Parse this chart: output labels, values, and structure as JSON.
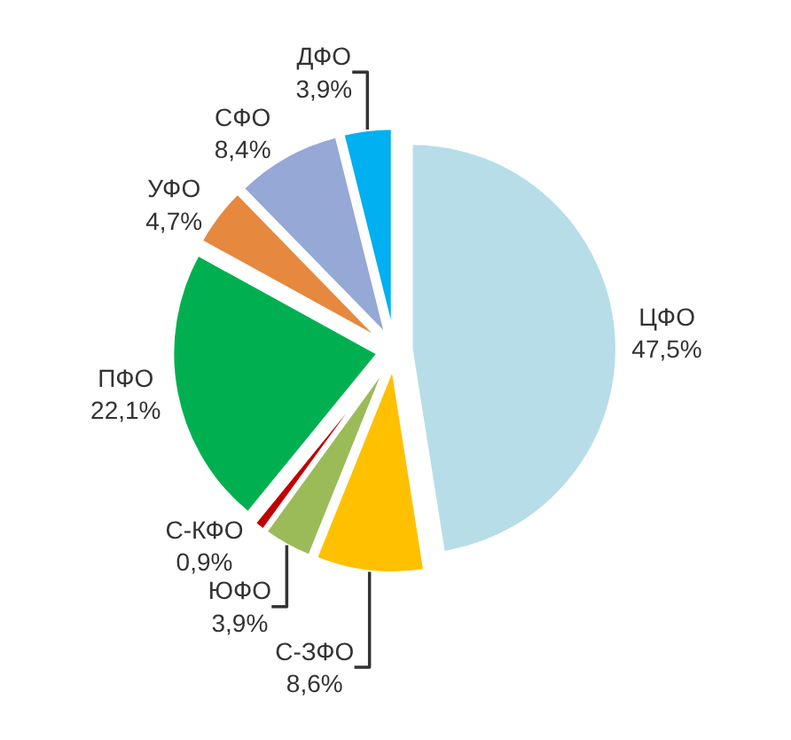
{
  "chart_data": {
    "type": "pie",
    "categories": [
      "ЦФО",
      "С-ЗФО",
      "ЮФО",
      "С-КФО",
      "ПФО",
      "УФО",
      "СФО",
      "ДФО"
    ],
    "values": [
      47.5,
      8.6,
      3.9,
      0.9,
      22.1,
      4.7,
      8.4,
      3.9
    ],
    "value_labels": [
      "47,5%",
      "8,6%",
      "3,9%",
      "0,9%",
      "22,1%",
      "4,7%",
      "8,4%",
      "3,9%"
    ],
    "colors": [
      "#b7dde8",
      "#ffc000",
      "#9bbb59",
      "#c00000",
      "#00b050",
      "#e6883e",
      "#95a8d6",
      "#00b0f0"
    ],
    "legend": false
  }
}
